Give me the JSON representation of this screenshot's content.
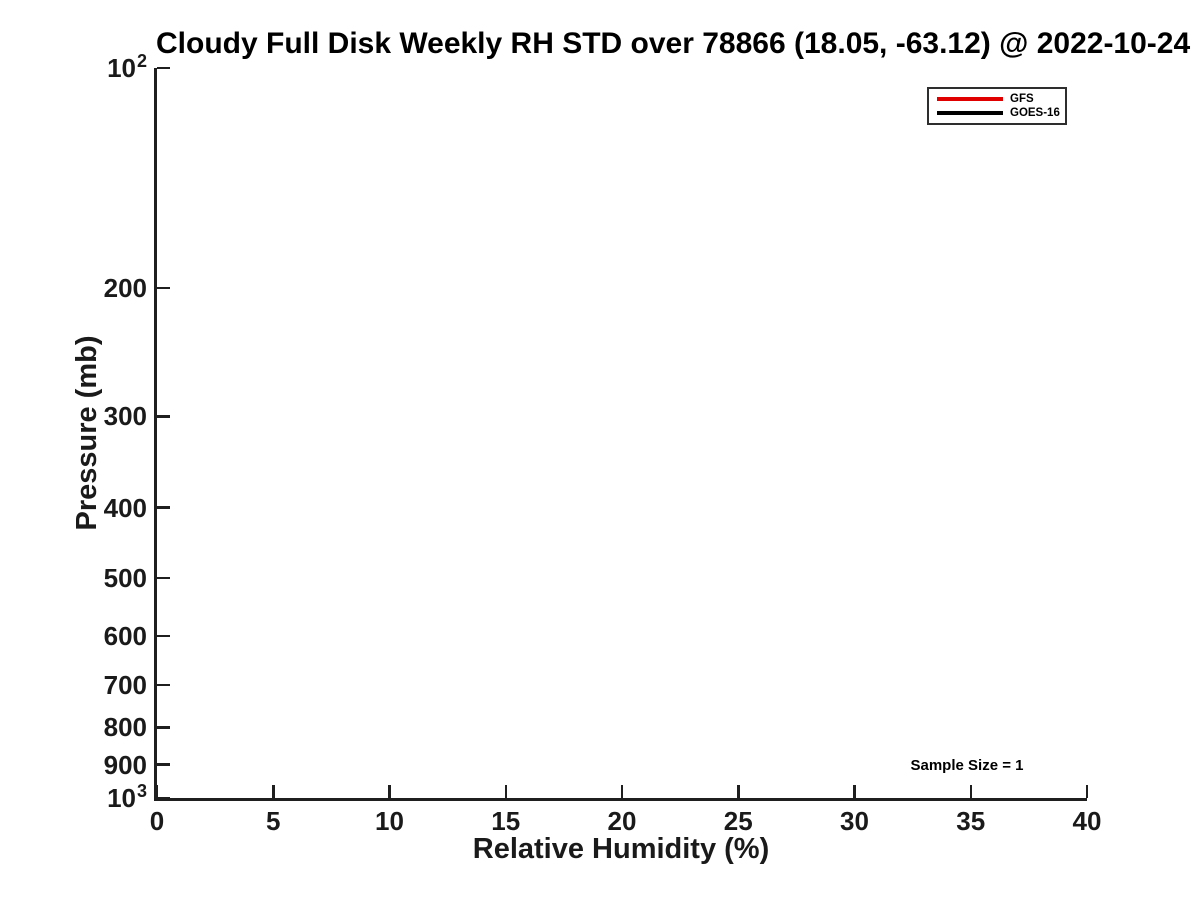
{
  "figure": {
    "background": "#ffffff",
    "text_color": "#1a1a1a",
    "axis_color": "#1f1f1f"
  },
  "chart_data": {
    "type": "line",
    "title": "Cloudy Full Disk Weekly RH STD over 78866 (18.05, -63.12) @ 2022-10-24",
    "xlabel": "Relative Humidity (%)",
    "ylabel": "Pressure (mb)",
    "xlim": [
      0,
      40
    ],
    "xticks": [
      0,
      5,
      10,
      15,
      20,
      25,
      30,
      35,
      40
    ],
    "yscale": "log",
    "ylim": [
      100,
      1000
    ],
    "y_axis_inverted": true,
    "yticks": [
      {
        "value": 100,
        "label": "10",
        "sup": "2"
      },
      {
        "value": 200,
        "label": "200"
      },
      {
        "value": 300,
        "label": "300"
      },
      {
        "value": 400,
        "label": "400"
      },
      {
        "value": 500,
        "label": "500"
      },
      {
        "value": 600,
        "label": "600"
      },
      {
        "value": 700,
        "label": "700"
      },
      {
        "value": 800,
        "label": "800"
      },
      {
        "value": 900,
        "label": "900"
      },
      {
        "value": 1000,
        "label": "10",
        "sup": "3"
      }
    ],
    "grid": false,
    "legend_position": "upper-right",
    "series": [
      {
        "name": "GFS",
        "color": "#e00000",
        "points": []
      },
      {
        "name": "GOES-16",
        "color": "#000000",
        "points": []
      }
    ],
    "annotations": [
      {
        "text": "Sample Size = 1",
        "x": 34.8,
        "y": 905
      }
    ]
  }
}
